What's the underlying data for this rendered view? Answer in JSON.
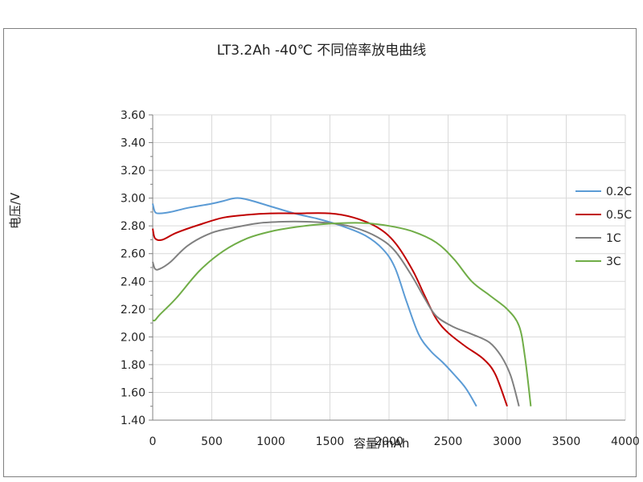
{
  "chart_data": {
    "type": "line",
    "title": "LT3.2Ah -40℃ 不同倍率放电曲线",
    "xlabel": "容量/mAh",
    "ylabel": "电压/V",
    "xlim": [
      0,
      4000
    ],
    "ylim": [
      1.4,
      3.6
    ],
    "xticks": [
      "0",
      "500",
      "1000",
      "1500",
      "2000",
      "2500",
      "3000",
      "3500",
      "4000"
    ],
    "yticks": [
      "1.40",
      "1.60",
      "1.80",
      "2.00",
      "2.20",
      "2.40",
      "2.60",
      "2.80",
      "3.00",
      "3.20",
      "3.40",
      "3.60"
    ],
    "grid": true,
    "legend_position": "right",
    "series": [
      {
        "name": "0.2C",
        "color": "#5b9bd5",
        "x": [
          0,
          20,
          60,
          150,
          300,
          500,
          600,
          700,
          800,
          1000,
          1200,
          1400,
          1600,
          1800,
          1950,
          2050,
          2150,
          2250,
          2350,
          2450,
          2550,
          2650,
          2740
        ],
        "y": [
          2.96,
          2.9,
          2.89,
          2.9,
          2.93,
          2.96,
          2.98,
          3.0,
          2.99,
          2.94,
          2.89,
          2.85,
          2.8,
          2.73,
          2.63,
          2.5,
          2.25,
          2.02,
          1.9,
          1.82,
          1.73,
          1.63,
          1.5
        ]
      },
      {
        "name": "0.5C",
        "color": "#c00000",
        "x": [
          0,
          20,
          80,
          200,
          400,
          600,
          800,
          1000,
          1200,
          1500,
          1700,
          1900,
          2050,
          2200,
          2300,
          2400,
          2500,
          2650,
          2800,
          2900,
          3000
        ],
        "y": [
          2.78,
          2.71,
          2.7,
          2.75,
          2.81,
          2.86,
          2.88,
          2.89,
          2.89,
          2.89,
          2.86,
          2.79,
          2.68,
          2.48,
          2.3,
          2.13,
          2.03,
          1.93,
          1.84,
          1.73,
          1.5
        ]
      },
      {
        "name": "1C",
        "color": "#808080",
        "x": [
          0,
          20,
          60,
          150,
          300,
          500,
          700,
          900,
          1100,
          1300,
          1500,
          1700,
          1900,
          2050,
          2200,
          2300,
          2400,
          2550,
          2700,
          2850,
          2950,
          3030,
          3100
        ],
        "y": [
          2.54,
          2.49,
          2.49,
          2.54,
          2.66,
          2.75,
          2.79,
          2.82,
          2.83,
          2.83,
          2.82,
          2.79,
          2.72,
          2.62,
          2.43,
          2.28,
          2.15,
          2.07,
          2.02,
          1.96,
          1.86,
          1.72,
          1.5
        ]
      },
      {
        "name": "3C",
        "color": "#70ad47",
        "x": [
          0,
          20,
          60,
          200,
          400,
          600,
          800,
          1000,
          1200,
          1400,
          1600,
          1800,
          2000,
          2200,
          2400,
          2550,
          2700,
          2850,
          3000,
          3100,
          3150,
          3200
        ],
        "y": [
          2.12,
          2.12,
          2.16,
          2.28,
          2.48,
          2.62,
          2.71,
          2.76,
          2.79,
          2.81,
          2.82,
          2.82,
          2.8,
          2.76,
          2.68,
          2.56,
          2.4,
          2.3,
          2.2,
          2.08,
          1.86,
          1.5
        ]
      }
    ]
  }
}
